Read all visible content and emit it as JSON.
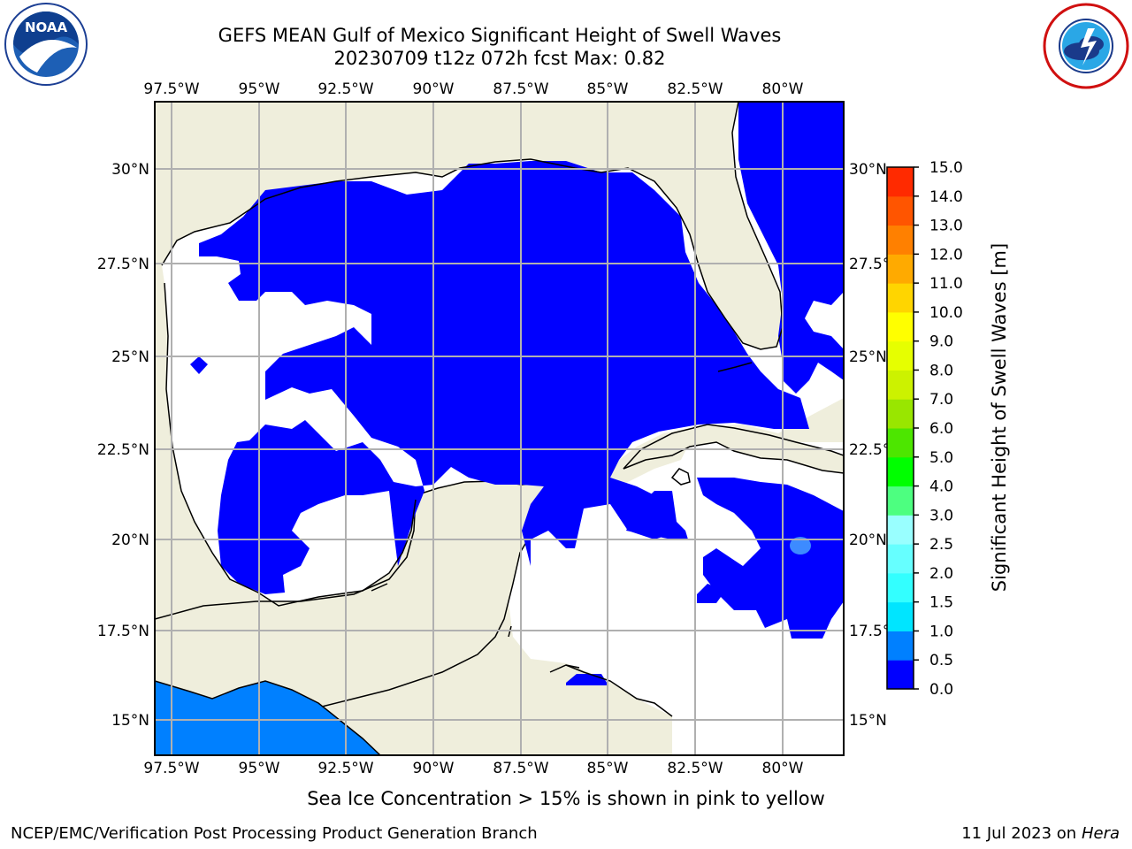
{
  "header": {
    "title_line1": "GEFS MEAN Gulf of Mexico Significant Height of Swell Waves",
    "title_line2": "20230709 t12z 072h fcst   Max: 0.82"
  },
  "logos": {
    "left": "noaa-logo",
    "left_text": "NOAA",
    "right": "nws-logo"
  },
  "map": {
    "lon_labels": [
      "97.5°W",
      "95°W",
      "92.5°W",
      "90°W",
      "87.5°W",
      "85°W",
      "82.5°W",
      "80°W"
    ],
    "lat_labels_left": [
      "30°N",
      "27.5°N",
      "25°N",
      "22.5°N",
      "20°N",
      "17.5°N",
      "15°N"
    ],
    "lat_labels_right": [
      "30°N",
      "27.5°N",
      "25°N",
      "22.5°N",
      "20°N",
      "17.5°N",
      "15°N"
    ],
    "colors": {
      "land": "#efeedc",
      "no_data": "#ffffff",
      "swell_0_0.5": "#0000ff",
      "swell_0.5_1.0": "#0080ff",
      "swell_1.0_1.5": "#3db8f5",
      "grid": "#b0b0b0",
      "coast": "#000000"
    }
  },
  "colorbar": {
    "label": "Significant Height of Swell Waves [m]",
    "ticks": [
      "0.0",
      "0.5",
      "1.0",
      "1.5",
      "2.0",
      "2.5",
      "3.0",
      "4.0",
      "5.0",
      "6.0",
      "7.0",
      "8.0",
      "9.0",
      "10.0",
      "11.0",
      "12.0",
      "13.0",
      "14.0",
      "15.0"
    ],
    "colors": [
      "#0000ff",
      "#0080ff",
      "#00e5ff",
      "#33ffff",
      "#66ffff",
      "#99ffff",
      "#4dff80",
      "#00ff00",
      "#4de600",
      "#99e600",
      "#ccf200",
      "#e6ff00",
      "#ffff00",
      "#ffd500",
      "#ffaa00",
      "#ff8000",
      "#ff5500",
      "#ff2a00",
      "#ff0000"
    ]
  },
  "footer": {
    "subtitle": "Sea Ice Concentration > 15% is shown in pink to yellow",
    "left": "NCEP/EMC/Verification Post Processing Product Generation Branch",
    "right_date": "11 Jul 2023 on ",
    "right_host": "Hera"
  }
}
